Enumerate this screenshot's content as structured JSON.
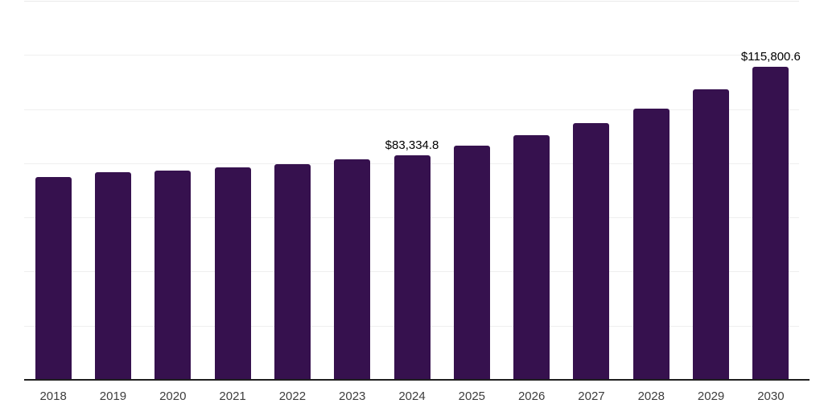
{
  "chart_data": {
    "type": "bar",
    "title": "",
    "xlabel": "",
    "ylabel": "",
    "categories": [
      "2018",
      "2019",
      "2020",
      "2021",
      "2022",
      "2023",
      "2024",
      "2025",
      "2026",
      "2027",
      "2028",
      "2029",
      "2030"
    ],
    "values": [
      75100,
      77000,
      77500,
      78700,
      79900,
      81800,
      83334.8,
      86900,
      90800,
      95000,
      100600,
      107500,
      115800.6
    ],
    "data_labels": [
      {
        "category": "2024",
        "text": "$83,334.8"
      },
      {
        "category": "2030",
        "text": "$115,800.6"
      }
    ],
    "ylim": [
      0,
      140000
    ],
    "ytick_step": 20000,
    "grid": "horizontal-only, no y tick labels",
    "legend": "none"
  },
  "colors": {
    "bar": "#36114E",
    "gridline": "#efefef",
    "axis_line": "#1f1f1f",
    "x_tick_label": "#3d3d3d",
    "data_label": "#000000",
    "background": "#ffffff"
  }
}
